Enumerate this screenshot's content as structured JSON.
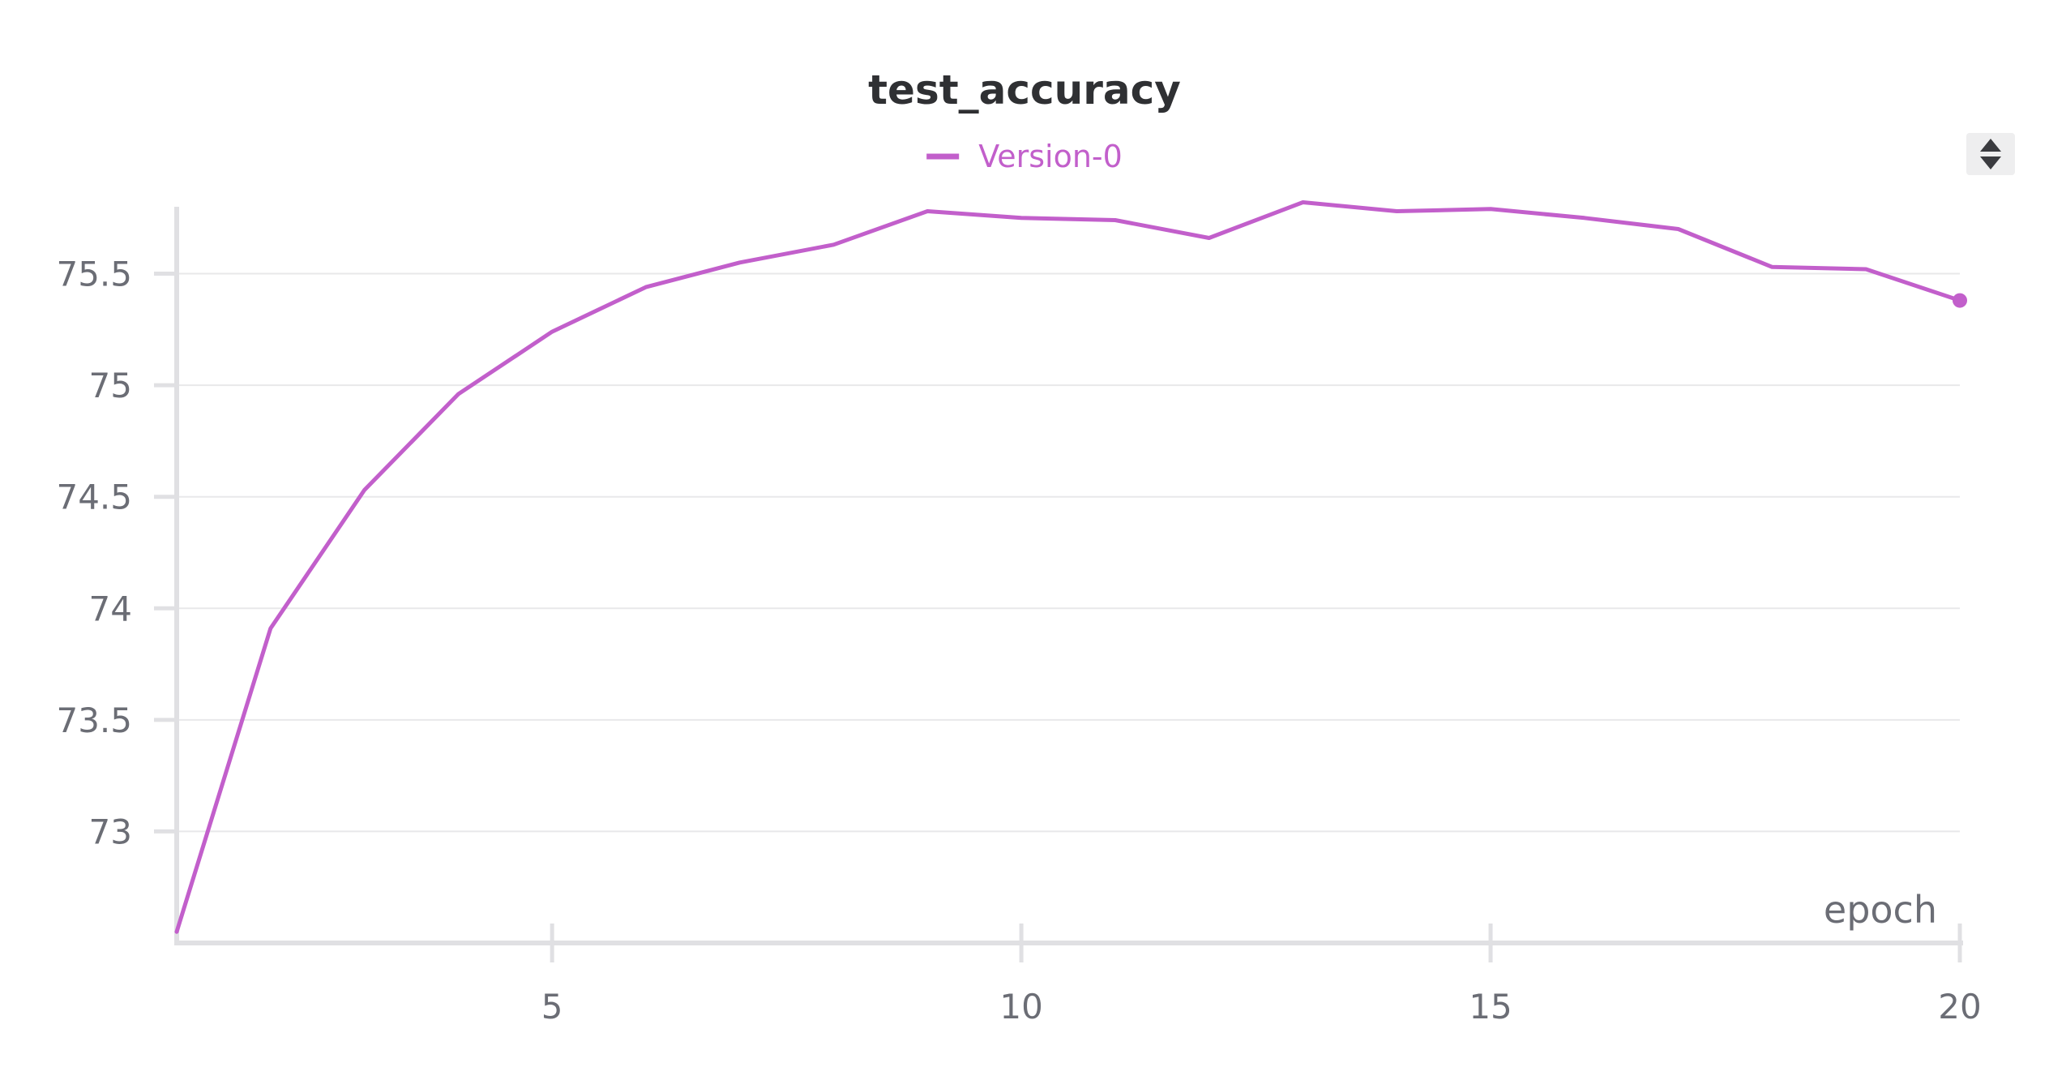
{
  "chart_data": {
    "type": "line",
    "title": "test_accuracy",
    "xlabel": "epoch",
    "ylabel": "",
    "xlim": [
      1,
      20
    ],
    "ylim": [
      72.5,
      75.8
    ],
    "xticks": [
      5,
      10,
      15,
      20
    ],
    "yticks": [
      73,
      73.5,
      74,
      74.5,
      75,
      75.5
    ],
    "grid": true,
    "legend_position": "top-center",
    "series": [
      {
        "name": "Version-0",
        "color": "#c25fcb",
        "x": [
          1,
          2,
          3,
          4,
          5,
          6,
          7,
          8,
          9,
          10,
          11,
          12,
          13,
          14,
          15,
          16,
          17,
          18,
          19,
          20
        ],
        "y": [
          72.55,
          73.91,
          74.53,
          74.96,
          75.24,
          75.44,
          75.55,
          75.63,
          75.78,
          75.75,
          75.74,
          75.66,
          75.82,
          75.78,
          75.79,
          75.75,
          75.7,
          75.53,
          75.52,
          75.38
        ]
      }
    ]
  },
  "legend_toggle_icon": "sort-arrows-icon"
}
